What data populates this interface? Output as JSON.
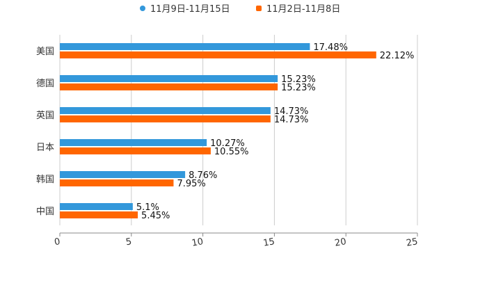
{
  "chart_data": {
    "type": "bar",
    "orientation": "horizontal",
    "categories": [
      "美国",
      "德国",
      "英国",
      "日本",
      "韩国",
      "中国"
    ],
    "series": [
      {
        "name": "11月9日-11月15日",
        "color": "#3398DB",
        "values": [
          17.48,
          15.23,
          14.73,
          10.27,
          8.76,
          5.1
        ],
        "labels": [
          "17.48%",
          "15.23%",
          "14.73%",
          "10.27%",
          "8.76%",
          "5.1%"
        ]
      },
      {
        "name": "11月2日-11月8日",
        "color": "#FF6600",
        "values": [
          22.12,
          15.23,
          14.73,
          10.55,
          7.95,
          5.45
        ],
        "labels": [
          "22.12%",
          "15.23%",
          "14.73%",
          "10.55%",
          "7.95%",
          "5.45%"
        ]
      }
    ],
    "xlim": [
      0,
      25
    ],
    "xticks": [
      "0",
      "5",
      "10",
      "15",
      "20",
      "25"
    ],
    "grid": true,
    "legend": "top-center"
  }
}
